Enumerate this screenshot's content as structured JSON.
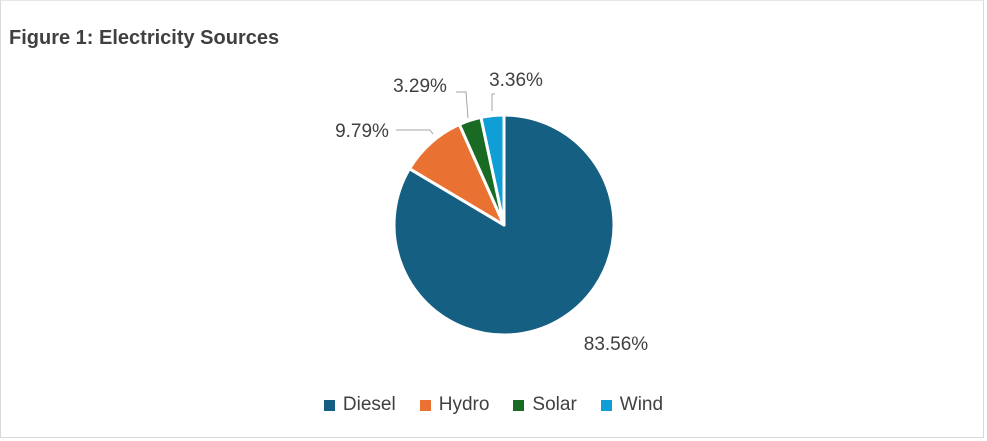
{
  "figure": {
    "title": "Figure 1: Electricity Sources"
  },
  "chart_data": {
    "type": "pie",
    "title": "Figure 1: Electricity Sources",
    "legend_position": "bottom",
    "slices": [
      {
        "name": "Diesel",
        "value": 83.56,
        "label": "83.56%",
        "color": "#156082"
      },
      {
        "name": "Hydro",
        "value": 9.79,
        "label": "9.79%",
        "color": "#e97132"
      },
      {
        "name": "Solar",
        "value": 3.29,
        "label": "3.29%",
        "color": "#196b24"
      },
      {
        "name": "Wind",
        "value": 3.36,
        "label": "3.36%",
        "color": "#0f9ed5"
      }
    ]
  }
}
